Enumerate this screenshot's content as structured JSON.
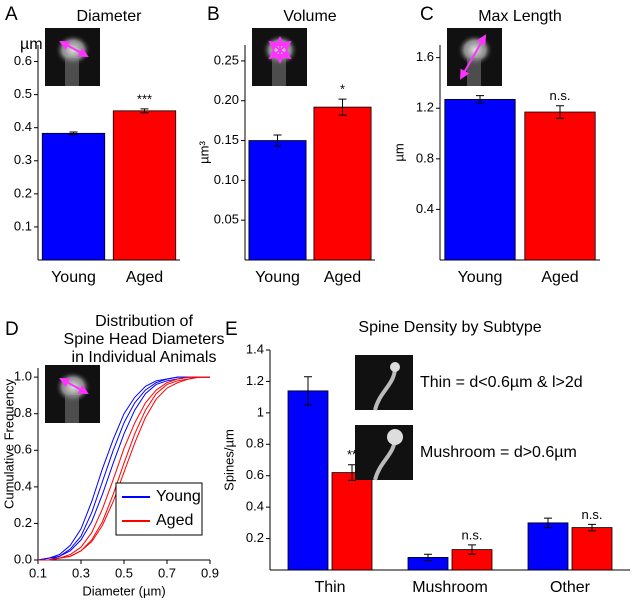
{
  "chart_data": [
    {
      "type": "bar",
      "panel": "A",
      "title": "Diameter",
      "ylabel": "µm",
      "categories": [
        "Young",
        "Aged"
      ],
      "values": [
        0.383,
        0.451
      ],
      "errors": [
        0.004,
        0.006
      ],
      "colors": [
        "#0000ff",
        "#ff0000"
      ],
      "annotations": [
        null,
        "***"
      ],
      "ylim": [
        0,
        0.65
      ],
      "yticks": [
        0.1,
        0.2,
        0.3,
        0.4,
        0.5,
        0.6
      ]
    },
    {
      "type": "bar",
      "panel": "B",
      "title": "Volume",
      "ylabel": "µm³",
      "categories": [
        "Young",
        "Aged"
      ],
      "values": [
        0.15,
        0.192
      ],
      "errors": [
        0.007,
        0.01
      ],
      "colors": [
        "#0000ff",
        "#ff0000"
      ],
      "annotations": [
        null,
        "*"
      ],
      "ylim": [
        0,
        0.27
      ],
      "yticks": [
        0.05,
        {
          "value": 0.1,
          "label": "0.10"
        },
        0.15,
        {
          "value": 0.2,
          "label": "0.20"
        },
        0.25
      ]
    },
    {
      "type": "bar",
      "panel": "C",
      "title": "Max Length",
      "ylabel": "µm",
      "categories": [
        "Young",
        "Aged"
      ],
      "values": [
        1.27,
        1.17
      ],
      "errors": [
        0.03,
        0.05
      ],
      "colors": [
        "#0000ff",
        "#ff0000"
      ],
      "annotations": [
        null,
        "n.s."
      ],
      "ylim": [
        0,
        1.7
      ],
      "yticks": [
        0.4,
        0.8,
        1.2,
        1.6
      ]
    },
    {
      "type": "line",
      "panel": "D",
      "title": [
        "Distribution of",
        "Spine Head Diameters",
        "in Individual Animals"
      ],
      "xlabel": "Diameter (µm)",
      "ylabel": "Cumulative Frequency",
      "x": [
        0.1,
        0.15,
        0.2,
        0.25,
        0.3,
        0.35,
        0.4,
        0.45,
        0.5,
        0.55,
        0.6,
        0.65,
        0.7,
        0.75,
        0.8,
        0.85,
        0.9
      ],
      "series": [
        {
          "name": "Young",
          "color": "#0000ff",
          "values": [
            [
              0,
              0.01,
              0.03,
              0.08,
              0.17,
              0.32,
              0.5,
              0.66,
              0.8,
              0.89,
              0.95,
              0.98,
              0.99,
              1,
              1,
              1,
              1
            ],
            [
              0,
              0.01,
              0.02,
              0.06,
              0.13,
              0.26,
              0.43,
              0.6,
              0.75,
              0.86,
              0.93,
              0.97,
              0.99,
              1,
              1,
              1,
              1
            ],
            [
              0,
              0,
              0.02,
              0.05,
              0.11,
              0.21,
              0.36,
              0.53,
              0.69,
              0.82,
              0.91,
              0.96,
              0.98,
              0.99,
              1,
              1,
              1
            ]
          ]
        },
        {
          "name": "Aged",
          "color": "#ff0000",
          "values": [
            [
              0,
              0,
              0.01,
              0.03,
              0.07,
              0.15,
              0.28,
              0.44,
              0.61,
              0.75,
              0.86,
              0.93,
              0.97,
              0.99,
              1,
              1,
              1
            ],
            [
              0,
              0,
              0.01,
              0.02,
              0.05,
              0.11,
              0.21,
              0.36,
              0.53,
              0.69,
              0.82,
              0.91,
              0.96,
              0.98,
              0.99,
              1,
              1
            ],
            [
              0,
              0,
              0.01,
              0.02,
              0.05,
              0.1,
              0.19,
              0.32,
              0.48,
              0.64,
              0.78,
              0.88,
              0.94,
              0.97,
              0.99,
              1,
              1
            ]
          ]
        }
      ],
      "legend": "lower right",
      "xlim": [
        0.1,
        0.9
      ],
      "xticks": [
        0.1,
        0.3,
        0.5,
        0.7,
        0.9
      ],
      "ylim": [
        0,
        1.05
      ],
      "yticks": [
        {
          "value": 0,
          "label": "0.0"
        },
        0.2,
        0.4,
        0.6,
        0.8,
        {
          "value": 1,
          "label": "1.0"
        }
      ]
    },
    {
      "type": "bar",
      "panel": "E",
      "title": "Spine Density by Subtype",
      "ylabel": "Spines/µm",
      "categories": [
        "Thin",
        "Mushroom",
        "Other"
      ],
      "series": [
        {
          "name": "Young",
          "color": "#0000ff",
          "values": [
            1.14,
            0.08,
            0.3
          ],
          "errors": [
            0.09,
            0.02,
            0.03
          ],
          "annotations": [
            null,
            null,
            null
          ]
        },
        {
          "name": "Aged",
          "color": "#ff0000",
          "values": [
            0.62,
            0.13,
            0.27
          ],
          "errors": [
            0.05,
            0.03,
            0.02
          ],
          "annotations": [
            "**",
            "n.s.",
            "n.s."
          ]
        }
      ],
      "insets": [
        "Thin = d<0.6µm & l>2d",
        "Mushroom = d>0.6µm"
      ],
      "ylim": [
        0,
        1.4
      ],
      "yticks": [
        0.2,
        0.4,
        0.6,
        0.8,
        1.0,
        1.2,
        1.4
      ]
    }
  ]
}
